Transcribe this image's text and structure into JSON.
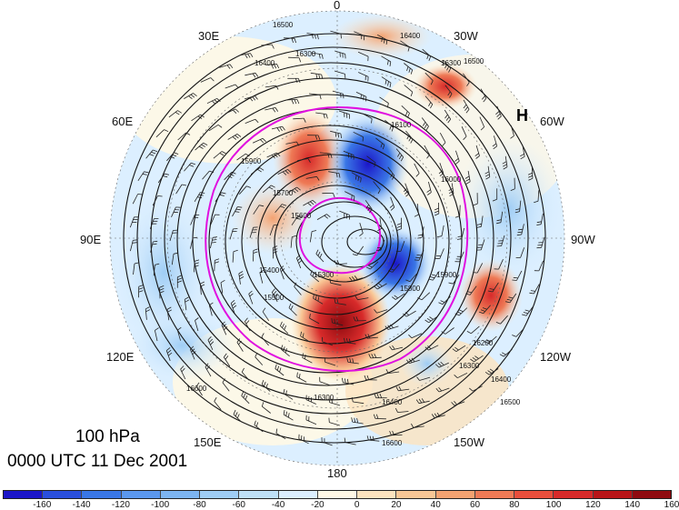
{
  "title": {
    "level": "100 hPa",
    "time": "0000 UTC 11 Dec 2001"
  },
  "longitude_labels": [
    {
      "id": "lon-0",
      "text": "0"
    },
    {
      "id": "lon-30w",
      "text": "30W"
    },
    {
      "id": "lon-60w",
      "text": "60W"
    },
    {
      "id": "lon-90w",
      "text": "90W"
    },
    {
      "id": "lon-120w",
      "text": "120W"
    },
    {
      "id": "lon-150w",
      "text": "150W"
    },
    {
      "id": "lon-180",
      "text": "180"
    },
    {
      "id": "lon-150e",
      "text": "150E"
    },
    {
      "id": "lon-120e",
      "text": "120E"
    },
    {
      "id": "lon-90e",
      "text": "90E"
    },
    {
      "id": "lon-60e",
      "text": "60E"
    },
    {
      "id": "lon-30e",
      "text": "30E"
    }
  ],
  "high_marker": "H",
  "contour_labels": [
    "16500",
    "16400",
    "16300",
    "16300",
    "16400",
    "16500",
    "16100",
    "15900",
    "15700",
    "15600",
    "15400",
    "15300",
    "15500",
    "15800",
    "15900",
    "16200",
    "16300",
    "16400",
    "16500",
    "16600",
    "16600",
    "16400",
    "16300",
    "16000"
  ],
  "colorbar": {
    "colors": [
      "#1b16c8",
      "#2a4fdc",
      "#3a77e6",
      "#5b98ee",
      "#7db5f2",
      "#9fcdf5",
      "#bfe0f7",
      "#dcefff",
      "#fff8e6",
      "#fde3bf",
      "#f9c796",
      "#f4a271",
      "#ee7a56",
      "#e84e3c",
      "#d72a2a",
      "#b81518",
      "#8f0b10"
    ],
    "ticks": [
      "-160",
      "-140",
      "-120",
      "-100",
      "-80",
      "-60",
      "-40",
      "-20",
      "0",
      "20",
      "40",
      "60",
      "80",
      "100",
      "120",
      "140",
      "160"
    ]
  }
}
